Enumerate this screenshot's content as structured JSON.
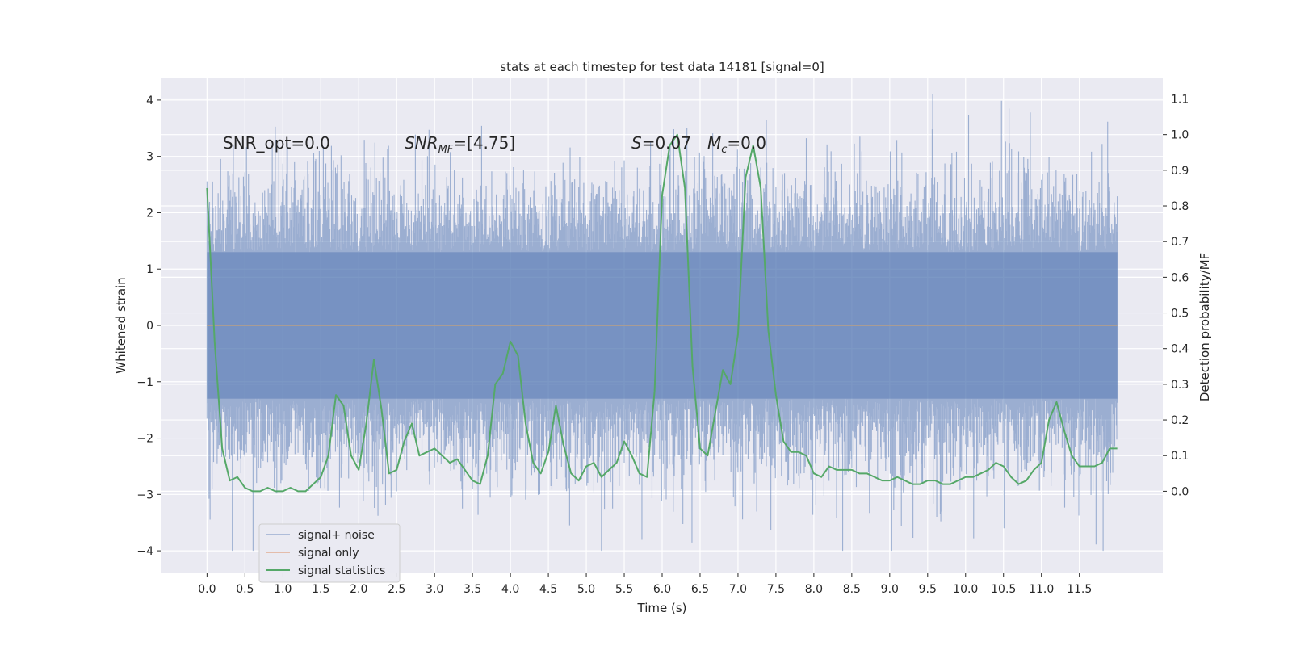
{
  "chart_data": {
    "type": "line",
    "title": "stats at each timestep for test data 14181 [signal=0]",
    "xlabel": "Time (s)",
    "ylabel": "Whitened strain",
    "y2label": "Detection probability/MF",
    "xlim": [
      -0.6,
      12.6
    ],
    "ylim": [
      -4.4,
      4.4
    ],
    "y2lim": [
      -0.23,
      1.16
    ],
    "xticks": [
      0.0,
      0.5,
      1.0,
      1.5,
      2.0,
      2.5,
      3.0,
      3.5,
      4.0,
      4.5,
      5.0,
      5.5,
      6.0,
      6.5,
      7.0,
      7.5,
      8.0,
      8.5,
      9.0,
      9.5,
      10.0,
      10.5,
      11.0,
      11.5
    ],
    "xtick_labels": [
      "0.0",
      "0.5",
      "1.0",
      "1.5",
      "2.0",
      "2.5",
      "3.0",
      "3.5",
      "4.0",
      "4.5",
      "5.0",
      "5.5",
      "6.0",
      "6.5",
      "7.0",
      "7.5",
      "8.0",
      "8.5",
      "9.0",
      "9.5",
      "10.0",
      "10.5",
      "11.0",
      "11.5"
    ],
    "yticks": [
      -4,
      -3,
      -2,
      -1,
      0,
      1,
      2,
      3,
      4
    ],
    "ytick_labels": [
      "−4",
      "−3",
      "−2",
      "−1",
      "0",
      "1",
      "2",
      "3",
      "4"
    ],
    "y2ticks": [
      0.0,
      0.1,
      0.2,
      0.3,
      0.4,
      0.5,
      0.6,
      0.7,
      0.8,
      0.9,
      1.0,
      1.1
    ],
    "y2tick_labels": [
      "0.0",
      "0.1",
      "0.2",
      "0.3",
      "0.4",
      "0.5",
      "0.6",
      "0.7",
      "0.8",
      "0.9",
      "1.0",
      "1.1"
    ],
    "grid": true,
    "legend_position": "lower-left",
    "annotations": [
      "SNR_opt=0.0",
      "SNR_MF=[4.75]",
      "S=0.07",
      "M_c=0.0"
    ],
    "series": [
      {
        "name": "signal+ noise",
        "color": "#4c72b0",
        "axis": "left",
        "style": "noise",
        "x_range": [
          0.0,
          12.0
        ],
        "core_band": [
          -1.3,
          1.3
        ],
        "peak_envelope": [
          -4.0,
          4.1
        ]
      },
      {
        "name": "signal only",
        "color": "#dd8452",
        "axis": "left",
        "x": [
          0.0,
          12.0
        ],
        "values": [
          0.0,
          0.0
        ]
      },
      {
        "name": "signal statistics",
        "color": "#55a868",
        "axis": "right",
        "x": [
          0.0,
          0.1,
          0.2,
          0.3,
          0.4,
          0.5,
          0.6,
          0.7,
          0.8,
          0.9,
          1.0,
          1.1,
          1.2,
          1.3,
          1.4,
          1.5,
          1.6,
          1.7,
          1.8,
          1.9,
          2.0,
          2.1,
          2.2,
          2.3,
          2.4,
          2.5,
          2.6,
          2.7,
          2.8,
          2.9,
          3.0,
          3.1,
          3.2,
          3.3,
          3.4,
          3.5,
          3.6,
          3.7,
          3.8,
          3.9,
          4.0,
          4.1,
          4.2,
          4.3,
          4.4,
          4.5,
          4.6,
          4.7,
          4.8,
          4.9,
          5.0,
          5.1,
          5.2,
          5.3,
          5.4,
          5.5,
          5.6,
          5.7,
          5.8,
          5.9,
          6.0,
          6.1,
          6.2,
          6.3,
          6.4,
          6.5,
          6.6,
          6.7,
          6.8,
          6.9,
          7.0,
          7.1,
          7.2,
          7.3,
          7.4,
          7.5,
          7.6,
          7.7,
          7.8,
          7.9,
          8.0,
          8.1,
          8.2,
          8.3,
          8.4,
          8.5,
          8.6,
          8.7,
          8.8,
          8.9,
          9.0,
          9.1,
          9.2,
          9.3,
          9.4,
          9.5,
          9.6,
          9.7,
          9.8,
          9.9,
          10.0,
          10.1,
          10.2,
          10.3,
          10.4,
          10.5,
          10.6,
          10.7,
          10.8,
          10.9,
          11.0,
          11.1,
          11.2,
          11.3,
          11.4,
          11.5,
          11.6,
          11.7,
          11.8,
          11.9,
          12.0
        ],
        "values": [
          0.85,
          0.42,
          0.12,
          0.03,
          0.04,
          0.01,
          0.0,
          0.0,
          0.01,
          0.0,
          0.0,
          0.01,
          0.0,
          0.0,
          0.02,
          0.04,
          0.1,
          0.27,
          0.24,
          0.1,
          0.06,
          0.19,
          0.37,
          0.23,
          0.05,
          0.06,
          0.14,
          0.19,
          0.1,
          0.11,
          0.12,
          0.1,
          0.08,
          0.09,
          0.06,
          0.03,
          0.02,
          0.1,
          0.3,
          0.33,
          0.42,
          0.38,
          0.19,
          0.08,
          0.05,
          0.11,
          0.24,
          0.13,
          0.05,
          0.03,
          0.07,
          0.08,
          0.04,
          0.06,
          0.08,
          0.14,
          0.1,
          0.05,
          0.04,
          0.28,
          0.83,
          0.97,
          1.0,
          0.85,
          0.35,
          0.12,
          0.1,
          0.22,
          0.34,
          0.3,
          0.44,
          0.88,
          0.97,
          0.85,
          0.45,
          0.27,
          0.14,
          0.11,
          0.11,
          0.1,
          0.05,
          0.04,
          0.07,
          0.06,
          0.06,
          0.06,
          0.05,
          0.05,
          0.04,
          0.03,
          0.03,
          0.04,
          0.03,
          0.02,
          0.02,
          0.03,
          0.03,
          0.02,
          0.02,
          0.03,
          0.04,
          0.04,
          0.05,
          0.06,
          0.08,
          0.07,
          0.04,
          0.02,
          0.03,
          0.06,
          0.08,
          0.2,
          0.25,
          0.17,
          0.1,
          0.07,
          0.07,
          0.07,
          0.08,
          0.12,
          0.12
        ]
      }
    ]
  }
}
